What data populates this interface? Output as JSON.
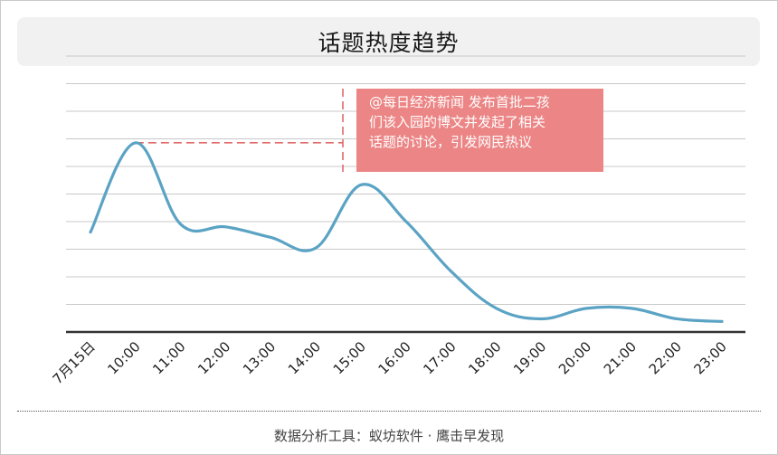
{
  "title": "话题热度趋势",
  "annotation": {
    "lines": [
      "@每日经济新闻 发布首批二孩",
      "们该入园的博文并发起了相关",
      "话题的讨论，引发网民热议"
    ]
  },
  "footer": "数据分析工具：蚁坊软件 · 鹰击早发现",
  "colors": {
    "line": "#5ba3c4",
    "annotation_fill": "#ec8585",
    "annotation_leader": "#e06a6a",
    "grid": "#c8c8c8",
    "baseline": "#333333"
  },
  "chart_data": {
    "type": "line",
    "title": "话题热度趋势",
    "categories": [
      "7月15日",
      "10:00",
      "11:00",
      "12:00",
      "13:00",
      "14:00",
      "15:00",
      "16:00",
      "17:00",
      "18:00",
      "19:00",
      "20:00",
      "21:00",
      "22:00",
      "23:00"
    ],
    "series": [
      {
        "values": [
          3.8,
          7.2,
          4.1,
          4.0,
          3.6,
          3.2,
          5.6,
          4.2,
          2.3,
          0.9,
          0.5,
          0.9,
          0.9,
          0.5,
          0.4
        ]
      }
    ],
    "annotated_point_index": 1,
    "annotation_anchor_category": "15:00",
    "ylim": [
      0,
      10.5
    ],
    "y_axis_labels": false,
    "grid": true,
    "gridline_count": 10,
    "legend": "none"
  }
}
